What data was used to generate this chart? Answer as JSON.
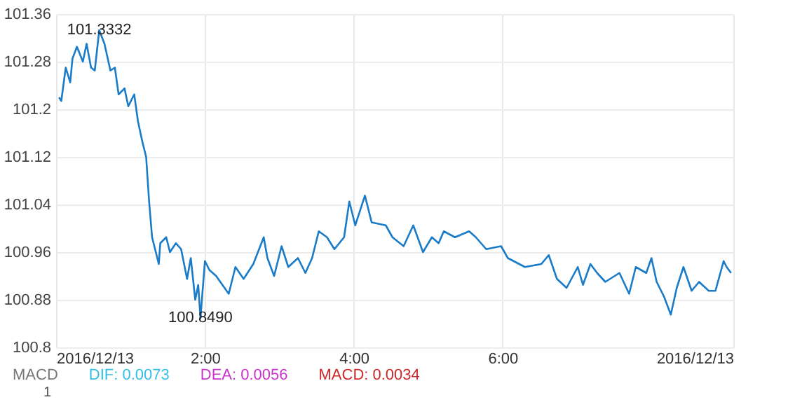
{
  "chart_data": {
    "type": "line",
    "x": [
      0.04,
      0.07,
      0.13,
      0.19,
      0.22,
      0.28,
      0.36,
      0.41,
      0.47,
      0.52,
      0.58,
      0.65,
      0.73,
      0.79,
      0.84,
      0.92,
      0.97,
      1.05,
      1.1,
      1.16,
      1.21,
      1.25,
      1.29,
      1.38,
      1.4,
      1.48,
      1.53,
      1.61,
      1.68,
      1.76,
      1.81,
      1.87,
      1.91,
      1.94,
      2.0,
      2.06,
      2.15,
      2.32,
      2.41,
      2.52,
      2.65,
      2.79,
      2.84,
      2.93,
      3.03,
      3.12,
      3.25,
      3.35,
      3.44,
      3.53,
      3.64,
      3.74,
      3.87,
      3.94,
      4.02,
      4.15,
      4.24,
      4.43,
      4.52,
      4.67,
      4.8,
      4.93,
      5.05,
      5.14,
      5.21,
      5.36,
      5.55,
      5.64,
      5.78,
      5.98,
      6.07,
      6.3,
      6.52,
      6.62,
      6.73,
      6.86,
      7.01,
      7.08,
      7.18,
      7.27,
      7.38,
      7.57,
      7.7,
      7.79,
      7.93,
      8.0,
      8.07,
      8.17,
      8.26,
      8.34,
      8.43,
      8.54,
      8.64,
      8.77,
      8.86,
      8.97,
      9.01,
      9.07
    ],
    "series": [
      {
        "color": "#1a7cc8",
        "values": [
          101.22,
          101.214,
          101.27,
          101.245,
          101.285,
          101.305,
          101.28,
          101.31,
          101.27,
          101.265,
          101.333,
          101.31,
          101.265,
          101.27,
          101.225,
          101.235,
          101.205,
          101.225,
          101.18,
          101.145,
          101.12,
          101.045,
          100.985,
          100.94,
          100.975,
          100.985,
          100.96,
          100.975,
          100.965,
          100.915,
          100.95,
          100.88,
          100.905,
          100.849,
          100.945,
          100.93,
          100.92,
          100.89,
          100.935,
          100.915,
          100.94,
          100.985,
          100.95,
          100.92,
          100.97,
          100.935,
          100.95,
          100.925,
          100.95,
          100.995,
          100.985,
          100.965,
          100.985,
          101.045,
          101.005,
          101.055,
          101.01,
          101.005,
          100.985,
          100.97,
          101.005,
          100.96,
          100.985,
          100.975,
          100.995,
          100.985,
          100.995,
          100.985,
          100.965,
          100.97,
          100.95,
          100.935,
          100.94,
          100.955,
          100.915,
          100.9,
          100.935,
          100.905,
          100.94,
          100.925,
          100.91,
          100.925,
          100.89,
          100.935,
          100.925,
          100.95,
          100.91,
          100.885,
          100.855,
          100.9,
          100.935,
          100.895,
          100.91,
          100.895,
          100.895,
          100.945,
          100.935,
          100.925
        ]
      }
    ],
    "xlim": [
      0,
      9.1
    ],
    "xticks": [
      {
        "value": 0,
        "label": "2016/12/13"
      },
      {
        "value": 2,
        "label": "2:00"
      },
      {
        "value": 4,
        "label": "4:00"
      },
      {
        "value": 6,
        "label": "6:00"
      },
      {
        "value": 9.1,
        "label": "2016/12/13"
      }
    ],
    "ylim": [
      100.8,
      101.36
    ],
    "yticks": [
      100.8,
      100.88,
      100.96,
      101.04,
      101.12,
      101.2,
      101.28,
      101.36
    ],
    "grid": true,
    "annotations": [
      {
        "text": "101.3332",
        "x": 0.58,
        "y": 101.333
      },
      {
        "text": "100.8490",
        "x": 1.94,
        "y": 100.849
      },
      "MACD",
      "DIF: 0.0073",
      "DEA: 0.0056",
      "MACD: 0.0034",
      "1"
    ]
  }
}
